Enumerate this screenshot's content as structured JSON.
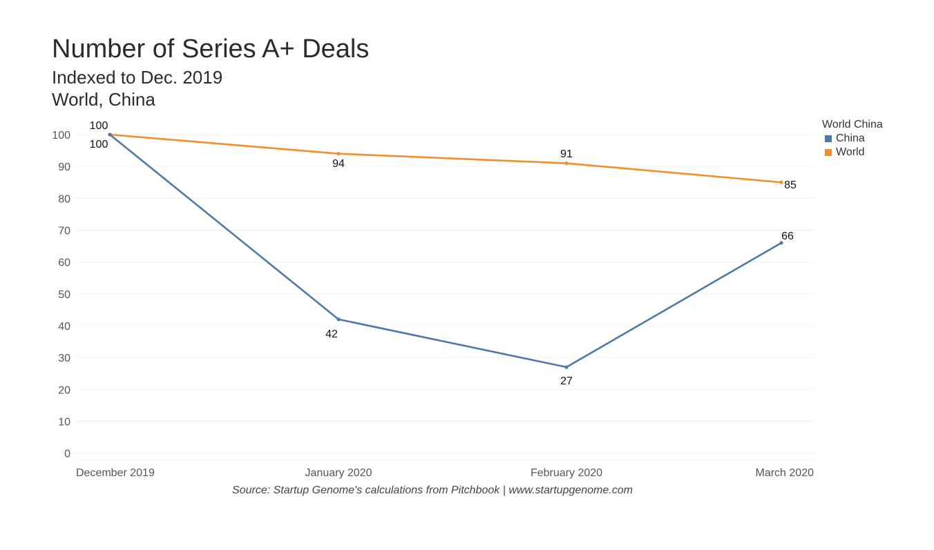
{
  "chart_data": {
    "type": "line",
    "title": "Number of Series A+ Deals",
    "subtitle_1": "Indexed to Dec. 2019",
    "subtitle_2": "World, China",
    "categories": [
      "December 2019",
      "January 2020",
      "February 2020",
      "March 2020"
    ],
    "series": [
      {
        "name": "China",
        "values": [
          100,
          42,
          27,
          66
        ],
        "color": "#4e79a7"
      },
      {
        "name": "World",
        "values": [
          100,
          94,
          91,
          85
        ],
        "color": "#f28e2b"
      }
    ],
    "ylim": [
      0,
      100
    ],
    "yticks": [
      0,
      10,
      20,
      30,
      40,
      50,
      60,
      70,
      80,
      90,
      100
    ],
    "xlabel": "",
    "ylabel": "",
    "grid": true,
    "legend": {
      "title": "World China",
      "position": "right",
      "items": [
        "China",
        "World"
      ]
    },
    "source": "Source: Startup Genome's calculations from Pitchbook | www.startupgenome.com"
  }
}
